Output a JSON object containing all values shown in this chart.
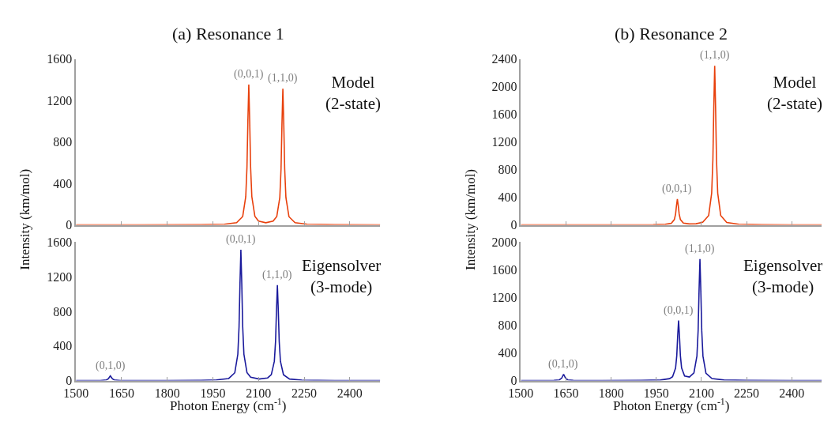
{
  "chart_data": [
    {
      "type": "line",
      "title": "(a) Resonance 1",
      "xlim": [
        1500,
        2500
      ],
      "xticks": [
        1500,
        1650,
        1800,
        1950,
        2100,
        2250,
        2400
      ],
      "ylim": [
        0,
        1600
      ],
      "yticks": [
        0,
        400,
        800,
        1200,
        1600
      ],
      "tick_labels": "y",
      "series": [
        {
          "color": "#e8400c",
          "x": [
            1500,
            1700,
            1900,
            1988,
            2028,
            2048,
            2058,
            2062,
            2065,
            2068,
            2071,
            2074,
            2078,
            2088,
            2100,
            2124,
            2148,
            2160,
            2170,
            2174,
            2177,
            2180,
            2183,
            2186,
            2190,
            2200,
            2220,
            2260,
            2350,
            2500
          ],
          "values": [
            0,
            0,
            2,
            6,
            22,
            81,
            272,
            556,
            995,
            1353,
            995,
            556,
            273,
            83,
            37,
            21,
            37,
            81,
            265,
            540,
            966,
            1313,
            966,
            540,
            264,
            79,
            22,
            6,
            2,
            0
          ]
        }
      ],
      "annotations": [
        {
          "text": "(0,0,1)",
          "x": 2068,
          "y": 1353
        },
        {
          "text": "(1,1,0)",
          "x": 2180,
          "y": 1313
        },
        "Model\n(2-state)"
      ]
    },
    {
      "type": "line",
      "xlabel": "Photon Energy (cm$^{-1}$)",
      "ylabel": "Intensity (km/mol)",
      "xlim": [
        1500,
        2500
      ],
      "xticks": [
        1500,
        1650,
        1800,
        1950,
        2100,
        2250,
        2400
      ],
      "ylim": [
        0,
        1600
      ],
      "yticks": [
        0,
        400,
        800,
        1200,
        1600
      ],
      "series": [
        {
          "color": "#1a1a9c",
          "x": [
            1500,
            1580,
            1600,
            1606,
            1610,
            1613,
            1616,
            1620,
            1626,
            1646,
            1700,
            1800,
            1900,
            1962,
            2002,
            2022,
            2032,
            2036,
            2039,
            2042,
            2045,
            2048,
            2052,
            2062,
            2074,
            2102,
            2130,
            2142,
            2152,
            2156,
            2159,
            2162,
            2165,
            2168,
            2172,
            2182,
            2202,
            2242,
            2350,
            2500
          ],
          "values": [
            0,
            1,
            7,
            19,
            40,
            55,
            40,
            19,
            7,
            1,
            0,
            1,
            2,
            7,
            24,
            90,
            304,
            621,
            1112,
            1512,
            1112,
            621,
            304,
            92,
            39,
            18,
            31,
            68,
            223,
            454,
            811,
            1103,
            811,
            453,
            222,
            67,
            18,
            5,
            1,
            0
          ]
        }
      ],
      "annotations": [
        {
          "text": "(0,1,0)",
          "x": 1613,
          "y": 55
        },
        {
          "text": "(0,0,1)",
          "x": 2042,
          "y": 1512
        },
        {
          "text": "(1,1,0)",
          "x": 2162,
          "y": 1103
        },
        "Eigensolver\n(3-mode)"
      ]
    },
    {
      "type": "line",
      "title": "(b) Resonance 2",
      "xlim": [
        1500,
        2500
      ],
      "xticks": [
        1500,
        1650,
        1800,
        1950,
        2100,
        2250,
        2400
      ],
      "ylim": [
        0,
        2400
      ],
      "yticks": [
        0,
        400,
        800,
        1200,
        1600,
        2000,
        2400
      ],
      "tick_labels": "y",
      "series": [
        {
          "color": "#e8400c",
          "x": [
            1500,
            1700,
            1850,
            1940,
            1980,
            2000,
            2010,
            2014,
            2017,
            2020,
            2023,
            2026,
            2030,
            2040,
            2060,
            2082,
            2104,
            2124,
            2134,
            2138,
            2141,
            2144,
            2147,
            2150,
            2154,
            2164,
            2184,
            2224,
            2300,
            2400,
            2500
          ],
          "values": [
            0,
            1,
            1,
            3,
            8,
            25,
            77,
            155,
            276,
            374,
            276,
            156,
            78,
            27,
            14,
            17,
            37,
            136,
            461,
            944,
            1692,
            2301,
            1692,
            944,
            461,
            136,
            36,
            9,
            2,
            1,
            0
          ]
        }
      ],
      "annotations": [
        {
          "text": "(0,0,1)",
          "x": 2020,
          "y": 374
        },
        {
          "text": "(1,1,0)",
          "x": 2144,
          "y": 2301
        },
        "Model\n(2-state)"
      ]
    },
    {
      "type": "line",
      "xlabel": "Photon Energy (cm$^{-1}$)",
      "ylabel": "Intensity (km/mol)",
      "xlim": [
        1500,
        2500
      ],
      "xticks": [
        1500,
        1650,
        1800,
        1950,
        2100,
        2250,
        2400
      ],
      "ylim": [
        0,
        2000
      ],
      "yticks": [
        0,
        400,
        800,
        1200,
        1600,
        2000
      ],
      "series": [
        {
          "color": "#1a1a9c",
          "x": [
            1500,
            1580,
            1610,
            1628,
            1636,
            1639,
            1642,
            1645,
            1648,
            1656,
            1674,
            1750,
            1900,
            1964,
            1994,
            2004,
            2014,
            2018,
            2021,
            2024,
            2027,
            2030,
            2034,
            2044,
            2060,
            2075,
            2085,
            2089,
            2092,
            2095,
            2098,
            2101,
            2105,
            2115,
            2135,
            2175,
            2250,
            2400,
            2500
          ],
          "values": [
            0,
            1,
            2,
            10,
            37,
            66,
            90,
            66,
            37,
            10,
            2,
            1,
            3,
            8,
            28,
            56,
            179,
            359,
            640,
            868,
            641,
            361,
            183,
            67,
            51,
            111,
            356,
            722,
            1292,
            1754,
            1291,
            721,
            353,
            106,
            29,
            8,
            2,
            0,
            0
          ]
        }
      ],
      "annotations": [
        {
          "text": "(0,1,0)",
          "x": 1642,
          "y": 90
        },
        {
          "text": "(0,0,1)",
          "x": 2024,
          "y": 868
        },
        {
          "text": "(1,1,0)",
          "x": 2095,
          "y": 1754
        },
        "Eigensolver\n(3-mode)"
      ]
    }
  ]
}
